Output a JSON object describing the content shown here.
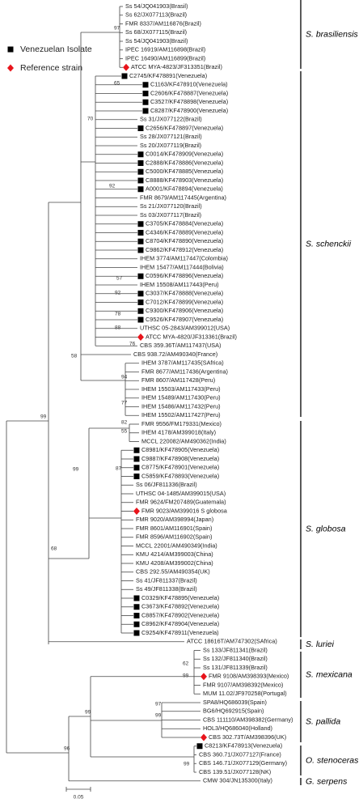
{
  "legend": [
    {
      "marker": "square",
      "label": "Venezuelan Isolate"
    },
    {
      "marker": "diamond",
      "label": "Reference strain"
    }
  ],
  "leaves": [
    {
      "label": "Ss 54/JQ041903(Brasil)"
    },
    {
      "label": "Ss 62/JX077113(Brazil)"
    },
    {
      "label": "FMR 8337/AM116876(Brazil)"
    },
    {
      "label": "Ss 68/JX077115(Brazil)"
    },
    {
      "label": "Ss 54/JQ041903(Brazil)"
    },
    {
      "label": "IPEC 16919/AM116898(Brazil)"
    },
    {
      "label": "IPEC 16490/AM116899(Brazil)"
    },
    {
      "label": "ATCC MYA-4823/JF313351(Brazil)",
      "marker": "diamond"
    },
    {
      "label": "C2745/KF478891(Venezuela)",
      "marker": "square"
    },
    {
      "label": "C1163/KF478910(Venezuela)",
      "marker": "square"
    },
    {
      "label": "C2606/KF478887(Venezuela)",
      "marker": "square"
    },
    {
      "label": "C3527/KF478898(Venezuela)",
      "marker": "square"
    },
    {
      "label": "C8287/KF478900(Venezuela)",
      "marker": "square"
    },
    {
      "label": "Ss 31/JX077122(Brazil)"
    },
    {
      "label": "C2656/KF478897(Venezuela)",
      "marker": "square"
    },
    {
      "label": "Ss 28/JX077121(Brazil)"
    },
    {
      "label": "Ss 20/JX077119(Brazil)"
    },
    {
      "label": "C0014/KF478909(Venezuela)",
      "marker": "square"
    },
    {
      "label": "C2888/KF478886(Venezuela)",
      "marker": "square"
    },
    {
      "label": "C5000/KF478885(Venezuela)",
      "marker": "square"
    },
    {
      "label": "C8888/KF478903(Venezuela)",
      "marker": "square"
    },
    {
      "label": "A0001/KF478894(Venezuela)",
      "marker": "square"
    },
    {
      "label": "FMR 8679/AM117445(Argentina)"
    },
    {
      "label": "Ss 21/JX077120(Brazil)"
    },
    {
      "label": "Ss 03/JX077117(Brazil)"
    },
    {
      "label": "C3705/KF478884(Venezuela)",
      "marker": "square"
    },
    {
      "label": "C4346/KF478889(Venezuela)",
      "marker": "square"
    },
    {
      "label": "C8704/KF478890(Venezuela)",
      "marker": "square"
    },
    {
      "label": "C9862/KF478912(Venezuela)",
      "marker": "square"
    },
    {
      "label": "IHEM 3774/AM117447(Colombia)"
    },
    {
      "label": "IHEM 15477/AM117444(Bolivia)"
    },
    {
      "label": "C0596/KF478896(Venezuela)",
      "marker": "square"
    },
    {
      "label": "IHEM 15508/AM117443(Peru)"
    },
    {
      "label": "C3037/KF478888(Venezuela)",
      "marker": "square"
    },
    {
      "label": "C7012/KF478899(Venezuela)",
      "marker": "square"
    },
    {
      "label": "C9300/KF478906(Venezuela)",
      "marker": "square"
    },
    {
      "label": "C9526/KF478907(Venezuela)",
      "marker": "square"
    },
    {
      "label": "UTHSC 05-2843/AM399012(USA)"
    },
    {
      "label": "ATCC MYA-4820/JF313361(Brazil)",
      "marker": "diamond"
    },
    {
      "label": "CBS 359.36T/AM117437(USA)"
    },
    {
      "label": "CBS 938.72/AM490340(France)"
    },
    {
      "label": "IHEM 3787/AM117435(SAfrica)"
    },
    {
      "label": "FMR 8677/AM117436(Argentina)"
    },
    {
      "label": "FMR 8607/AM117428(Peru)"
    },
    {
      "label": "IHEM 15503/AM117433(Peru)"
    },
    {
      "label": "IHEM 15489/AM117430(Peru)"
    },
    {
      "label": "IHEM 15486/AM117432(Peru)"
    },
    {
      "label": "IHEM 15502/AM117427(Peru)"
    },
    {
      "label": "FMR 9556/FM179331(Mexico)"
    },
    {
      "label": "IHEM 4178/AM399018(Italy)"
    },
    {
      "label": "MCCL 220082/AM490362(India)"
    },
    {
      "label": "C8981/KF478905(Venezuela)",
      "marker": "square"
    },
    {
      "label": "C9887/KF478908(Venezuela)",
      "marker": "square"
    },
    {
      "label": "C8775/KF478901(Venezuela)",
      "marker": "square"
    },
    {
      "label": "C5859/KF478893(Venezuela)",
      "marker": "square"
    },
    {
      "label": "Ss 06/JF811336(Brazil)"
    },
    {
      "label": "UTHSC 04-1485/AM399015(USA)"
    },
    {
      "label": "FMR 9624/FM207489(Guatemala)"
    },
    {
      "label": "FMR 9023/AM399016 S globosa",
      "marker": "diamond"
    },
    {
      "label": "FMR 9020/AM398994(Japan)"
    },
    {
      "label": "FMR 8601/AM116901(Spain)"
    },
    {
      "label": "FMR 8596/AM116902(Spain)"
    },
    {
      "label": "MCCL 22001/AM490349(India)"
    },
    {
      "label": "KMU 4214/AM399003(China)"
    },
    {
      "label": "KMU 4208/AM399002(China)"
    },
    {
      "label": "CBS 292.55/AM490354(UK)"
    },
    {
      "label": "Ss 41/JF811337(Brazil)"
    },
    {
      "label": "Ss 49/JF811338(Brazil)"
    },
    {
      "label": "C0329/KF478895(Venezuela)",
      "marker": "square"
    },
    {
      "label": "C3673/KF478892(Venezuela)",
      "marker": "square"
    },
    {
      "label": "C8857/KF478902(Venezuela)",
      "marker": "square"
    },
    {
      "label": "C8962/KF478904(Venezuela)",
      "marker": "square"
    },
    {
      "label": "C9254/KF478911(Venezuela)",
      "marker": "square"
    },
    {
      "label": "ATCC 18616T/AM747302(SAfrica)"
    },
    {
      "label": "Ss 133/JF811341(Brazil)"
    },
    {
      "label": "Ss 132/JF811340(Brazil)"
    },
    {
      "label": "Ss 131/JF811339(Brazil)"
    },
    {
      "label": "FMR 9108/AM398393(Mexico)",
      "marker": "diamond"
    },
    {
      "label": "FMR 9107/AM398392(Mexico)"
    },
    {
      "label": "MUM 11.02/JF970258(Portugal)"
    },
    {
      "label": "SPA8/HQ686039(Spain)"
    },
    {
      "label": "BG6/HQ692915(Spain)"
    },
    {
      "label": "CBS 111110/AM398382(Germany)"
    },
    {
      "label": "HOL3/HQ686040(Holland)"
    },
    {
      "label": "CBS 302.73T/AM398396(UK)",
      "marker": "diamond"
    },
    {
      "label": "C8213/KF478913(Venezuela)",
      "marker": "square"
    },
    {
      "label": "CBS 360.71/JX077127(France)"
    },
    {
      "label": "CBS 146.71/JX077129(Germany)"
    },
    {
      "label": "CBS 139.51/JX077128(NK)"
    },
    {
      "label": "CMW 304/JN135300(Italy)"
    }
  ],
  "bootstrap": [
    97,
    99,
    70,
    65,
    92,
    57,
    92,
    78,
    88,
    76,
    58,
    94,
    77,
    82,
    55,
    87,
    99,
    68,
    62,
    99,
    97,
    99,
    99,
    96,
    99
  ],
  "clades": [
    "S. brasiliensis",
    "S. schenckii",
    "S. globosa",
    "S. luriei",
    "S. mexicana",
    "S. pallida",
    "O. stenoceras",
    "G. serpens"
  ],
  "scale_bar": "0.05"
}
